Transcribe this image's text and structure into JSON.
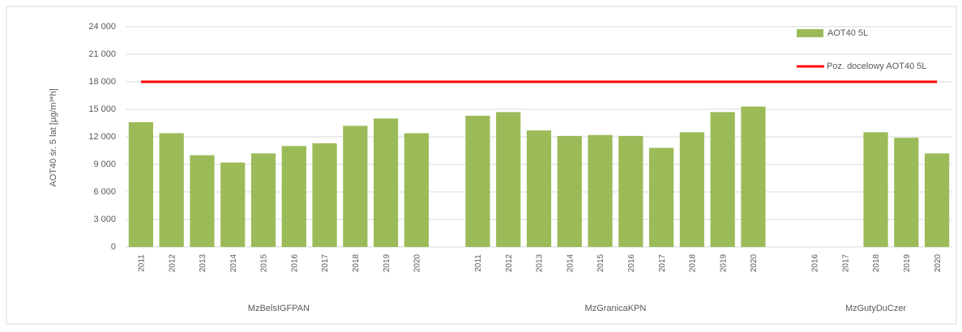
{
  "chart_data": {
    "type": "bar",
    "y_label": "AOT40 śr. 5 lat [µg/m³*h]",
    "series_name": "AOT40 5L",
    "color": "#9bbb59",
    "groups": [
      {
        "name": "MzBelsIGFPAN",
        "categories": [
          "2011",
          "2012",
          "2013",
          "2014",
          "2015",
          "2016",
          "2017",
          "2018",
          "2019",
          "2020"
        ],
        "values": [
          13600,
          12400,
          10000,
          9200,
          10200,
          11000,
          11300,
          13200,
          14000,
          12400
        ]
      },
      {
        "name": "MzGranicaKPN",
        "categories": [
          "2011",
          "2012",
          "2013",
          "2014",
          "2015",
          "2016",
          "2017",
          "2018",
          "2019",
          "2020"
        ],
        "values": [
          14300,
          14700,
          12700,
          12100,
          12200,
          12100,
          10800,
          12500,
          14700,
          15300
        ]
      },
      {
        "name": "MzGutyDuCzer",
        "categories": [
          "2016",
          "2017",
          "2018",
          "2019",
          "2020"
        ],
        "values": [
          null,
          null,
          12500,
          11900,
          10200
        ]
      }
    ],
    "target": {
      "name": "Poz. docelowy AOT40 5L",
      "value": 18000,
      "color": "#ff0000"
    },
    "ylim": [
      0,
      24000
    ],
    "yticks": [
      0,
      {
        "value": 3000,
        "label": "3 000"
      },
      {
        "value": 6000,
        "label": "6 000"
      },
      {
        "value": 9000,
        "label": "9 000"
      },
      {
        "value": 12000,
        "label": "12 000"
      },
      {
        "value": 15000,
        "label": "15 000"
      },
      {
        "value": 18000,
        "label": "18 000"
      },
      {
        "value": 21000,
        "label": "21 000"
      },
      {
        "value": 24000,
        "label": "24 000"
      }
    ],
    "grid": true
  }
}
